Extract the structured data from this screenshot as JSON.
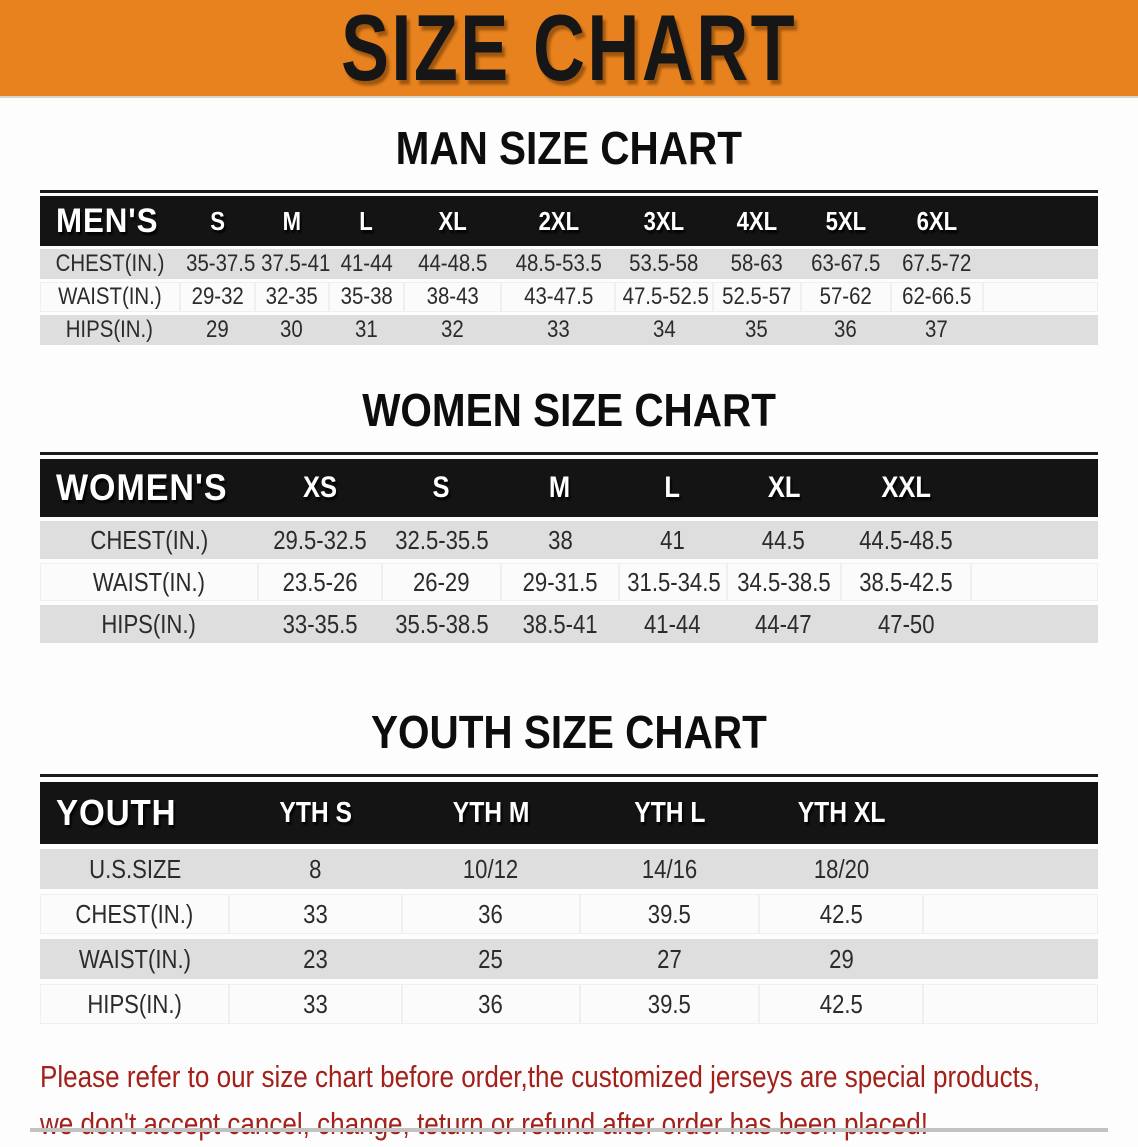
{
  "banner": {
    "title": "SIZE CHART"
  },
  "colors": {
    "banner_bg": "#E8821E",
    "title_color": "#161616",
    "band_bg": "#141414",
    "row_alt_bg": "#DEDEDE",
    "note_color": "#A3211A"
  },
  "sections": [
    {
      "heading": "MAN SIZE CHART",
      "table": {
        "label": "MEN'S",
        "columns": [
          "S",
          "M",
          "L",
          "XL",
          "2XL",
          "3XL",
          "4XL",
          "5XL",
          "6XL"
        ],
        "rows": [
          {
            "label": "CHEST(IN.)",
            "values": [
              "35-37.5",
              "37.5-41",
              "41-44",
              "44-48.5",
              "48.5-53.5",
              "53.5-58",
              "58-63",
              "63-67.5",
              "67.5-72"
            ]
          },
          {
            "label": "WAIST(IN.)",
            "values": [
              "29-32",
              "32-35",
              "35-38",
              "38-43",
              "43-47.5",
              "47.5-52.5",
              "52.5-57",
              "57-62",
              "62-66.5"
            ]
          },
          {
            "label": "HIPS(IN.)",
            "values": [
              "29",
              "30",
              "31",
              "32",
              "33",
              "34",
              "35",
              "36",
              "37"
            ]
          }
        ]
      }
    },
    {
      "heading": "WOMEN SIZE CHART",
      "table": {
        "label": "WOMEN'S",
        "columns": [
          "XS",
          "S",
          "M",
          "L",
          "XL",
          "XXL"
        ],
        "rows": [
          {
            "label": "CHEST(IN.)",
            "values": [
              "29.5-32.5",
              "32.5-35.5",
              "38",
              "41",
              "44.5",
              "44.5-48.5"
            ]
          },
          {
            "label": "WAIST(IN.)",
            "values": [
              "23.5-26",
              "26-29",
              "29-31.5",
              "31.5-34.5",
              "34.5-38.5",
              "38.5-42.5"
            ]
          },
          {
            "label": "HIPS(IN.)",
            "values": [
              "33-35.5",
              "35.5-38.5",
              "38.5-41",
              "41-44",
              "44-47",
              "47-50"
            ]
          }
        ]
      }
    },
    {
      "heading": "YOUTH SIZE CHART",
      "table": {
        "label": "YOUTH",
        "columns": [
          "YTH S",
          "YTH M",
          "YTH L",
          "YTH XL"
        ],
        "rows": [
          {
            "label": "U.S.SIZE",
            "values": [
              "8",
              "10/12",
              "14/16",
              "18/20"
            ]
          },
          {
            "label": "CHEST(IN.)",
            "values": [
              "33",
              "36",
              "39.5",
              "42.5"
            ]
          },
          {
            "label": "WAIST(IN.)",
            "values": [
              "23",
              "25",
              "27",
              "29"
            ]
          },
          {
            "label": "HIPS(IN.)",
            "values": [
              "33",
              "36",
              "39.5",
              "42.5"
            ]
          }
        ]
      }
    }
  ],
  "note": {
    "line1": "Please refer to our size chart before order,the customized jerseys are special products,",
    "line2": "we don't accept cancel, change, teturn or refund after order has been placed!"
  }
}
